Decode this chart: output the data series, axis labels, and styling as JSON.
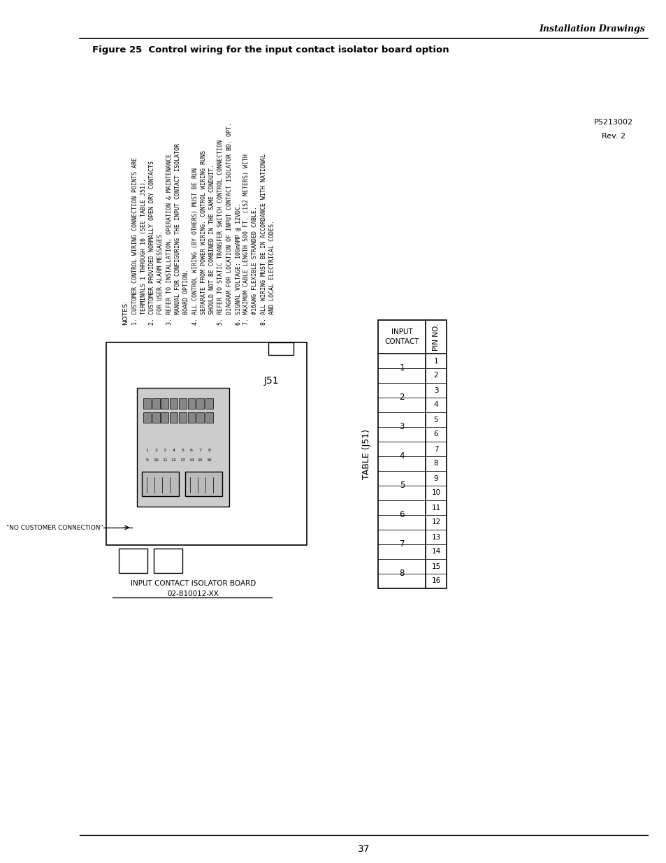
{
  "page_header_right": "Installation Drawings",
  "figure_title": "Figure 25  Control wiring for the input contact isolator board option",
  "notes_label": "NOTES:",
  "note_lines": [
    "1. CUSTOMER CONTROL WIRING CONNECTION POINTS ARE",
    "   TERMINALS 1 THROUGH 16 (SEE TABLE J51).",
    "2. CUSTOMER PROVIDED NORMALLY OPEN DRY CONTACTS",
    "   FOR USER ALARM MESSAGES.",
    "3. REFER TO INSTALLATION, OPERATION & MAINTENANCE",
    "   MANUAL FOR CONFIGURING THE INPUT CONTACT ISOLATOR",
    "   BOARD OPTION.",
    "4. ALL CONTROL WIRING (BY OTHERS) MUST BE RUN",
    "   SEPARATE FROM POWER WIRING. CONTROL WIRING RUNS",
    "   SHOULD NOT BE COMBINED IN THE SAME CONDUIT.",
    "5. REFER TO STATIC TRANSFER SWITCH CONTROL CONNECTION",
    "   DIAGRAM FOR LOCATION OF INPUT CONTACT ISOLATOR BD. OPT.",
    "6. SIGNAL VOLTAGE: 100mAMP @ 12VDC.",
    "7. MAXIMUM CABLE LENGTH 500 FT. (152 METERS) WITH",
    "   #16AWG FLEXIBLE STRANDED CABLE.",
    "8. ALL WIRING MUST BE IN ACCORDANCE WITH NATIONAL",
    "   AND LOCAL ELECTRICAL CODES."
  ],
  "table_title": "TABLE (J51)",
  "table_col1_header": "INPUT\nCONTACT",
  "table_col2_header": "PIN NO.",
  "input_contacts": [
    "1",
    "2",
    "3",
    "4",
    "5",
    "6",
    "7",
    "8"
  ],
  "pin_numbers": [
    "1",
    "2",
    "3",
    "4",
    "5",
    "6",
    "7",
    "8",
    "9",
    "10",
    "11",
    "12",
    "13",
    "14",
    "15",
    "16"
  ],
  "board_label_line1": "INPUT CONTACT ISOLATOR BOARD",
  "board_label_line2": "02-810012-XX",
  "connector_label": "J51",
  "no_customer_label": "\"NO CUSTOMER CONNECTION\"",
  "ps_label_line1": "PS213002",
  "ps_label_line2": "Rev. 2",
  "page_number": "37",
  "bg_color": "#ffffff",
  "line_color": "#000000",
  "text_color": "#000000"
}
